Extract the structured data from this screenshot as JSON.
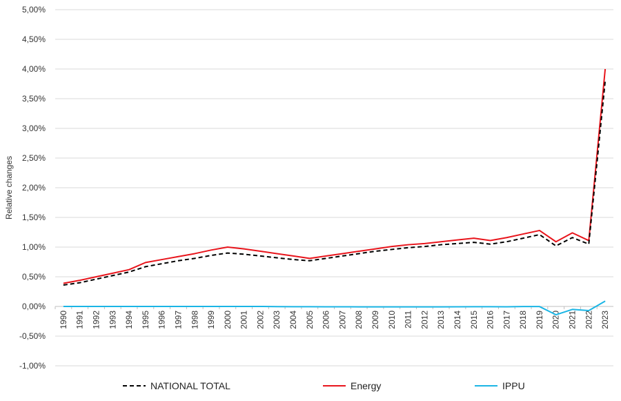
{
  "chart_data": {
    "type": "line",
    "title": "",
    "xlabel": "",
    "ylabel": "Relative changes",
    "ylim": [
      -1.0,
      5.0
    ],
    "y_ticks": [
      -1.0,
      -0.5,
      0.0,
      0.5,
      1.0,
      1.5,
      2.0,
      2.5,
      3.0,
      3.5,
      4.0,
      4.5,
      5.0
    ],
    "y_tick_labels": [
      "-1,00%",
      "-0,50%",
      "0,00%",
      "0,50%",
      "1,00%",
      "1,50%",
      "2,00%",
      "2,50%",
      "3,00%",
      "3,50%",
      "4,00%",
      "4,50%",
      "5,00%"
    ],
    "grid": true,
    "legend_position": "bottom",
    "x": [
      "1990",
      "1991",
      "1992",
      "1993",
      "1994",
      "1995",
      "1996",
      "1997",
      "1998",
      "1999",
      "2000",
      "2001",
      "2002",
      "2003",
      "2004",
      "2005",
      "2006",
      "2007",
      "2008",
      "2009",
      "2010",
      "2011",
      "2012",
      "2013",
      "2014",
      "2015",
      "2016",
      "2017",
      "2018",
      "2019",
      "2020",
      "2021",
      "2022",
      "2023"
    ],
    "series": [
      {
        "name": "NATIONAL TOTAL",
        "color": "#000000",
        "dash": "dashed",
        "values": [
          0.36,
          0.4,
          0.46,
          0.52,
          0.58,
          0.67,
          0.72,
          0.77,
          0.81,
          0.86,
          0.9,
          0.88,
          0.85,
          0.82,
          0.79,
          0.77,
          0.81,
          0.85,
          0.89,
          0.93,
          0.96,
          0.99,
          1.01,
          1.04,
          1.06,
          1.08,
          1.05,
          1.09,
          1.15,
          1.21,
          1.02,
          1.16,
          1.05,
          3.8
        ]
      },
      {
        "name": "Energy",
        "color": "#e8141b",
        "dash": "solid",
        "values": [
          0.39,
          0.44,
          0.5,
          0.56,
          0.62,
          0.74,
          0.79,
          0.84,
          0.89,
          0.95,
          1.0,
          0.97,
          0.93,
          0.89,
          0.85,
          0.81,
          0.85,
          0.89,
          0.93,
          0.97,
          1.01,
          1.04,
          1.06,
          1.09,
          1.12,
          1.15,
          1.11,
          1.16,
          1.22,
          1.28,
          1.09,
          1.24,
          1.11,
          4.0
        ]
      },
      {
        "name": "IPPU",
        "color": "#1ab5e5",
        "dash": "solid",
        "values": [
          0.0,
          0.0,
          0.0,
          0.0,
          0.0,
          0.0,
          0.0,
          0.0,
          0.0,
          0.0,
          0.0,
          0.0,
          0.0,
          -0.003,
          -0.004,
          -0.005,
          -0.006,
          -0.006,
          -0.007,
          -0.007,
          -0.007,
          -0.007,
          -0.007,
          -0.007,
          -0.006,
          -0.005,
          -0.005,
          -0.006,
          -0.001,
          -0.002,
          -0.14,
          -0.05,
          -0.07,
          0.09
        ]
      }
    ]
  }
}
